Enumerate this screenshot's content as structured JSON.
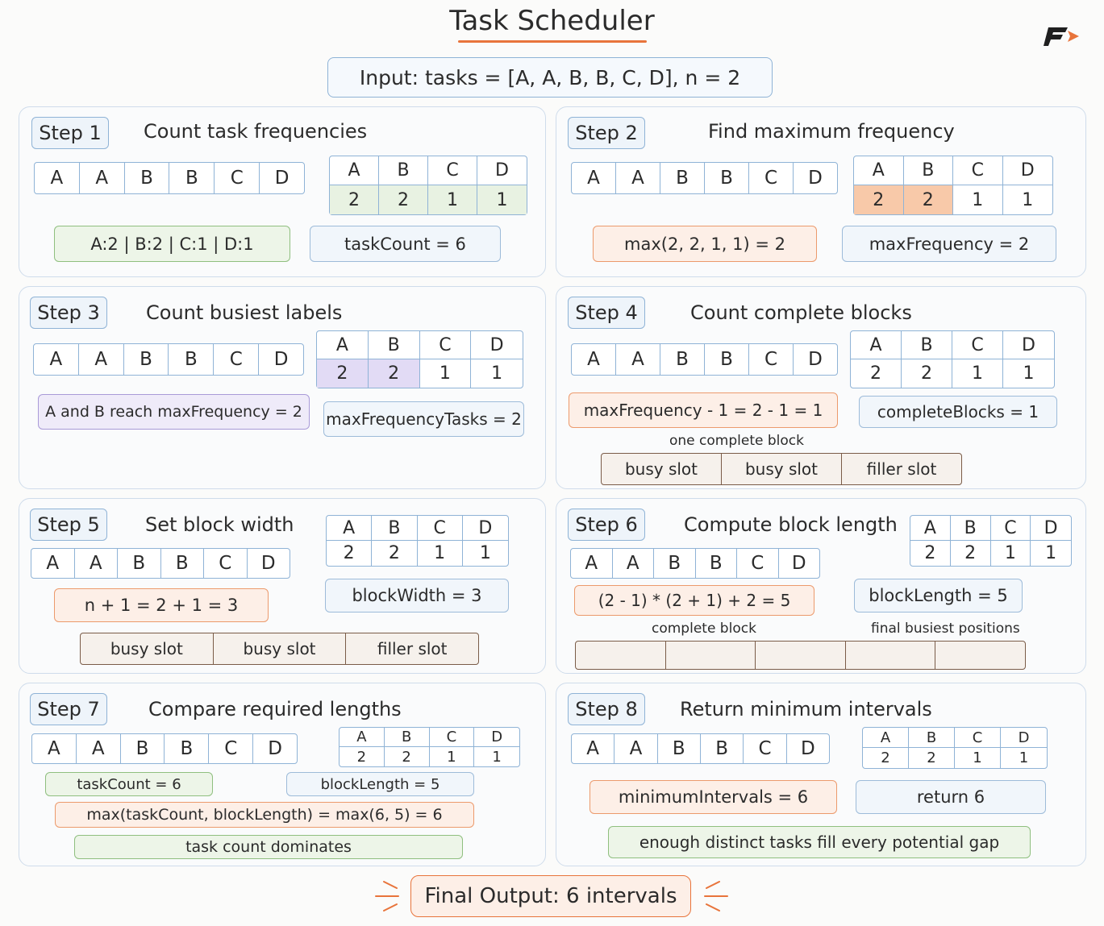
{
  "title": "Task Scheduler",
  "input": "Input:  tasks  =  [A, A, B, B, C, D],  n  =  2",
  "tasks": [
    "A",
    "A",
    "B",
    "B",
    "C",
    "D"
  ],
  "freq_headers": [
    "A",
    "B",
    "C",
    "D"
  ],
  "freq_values": [
    "2",
    "2",
    "1",
    "1"
  ],
  "steps": {
    "s1": {
      "badge": "Step 1",
      "title": "Count  task  frequencies",
      "box1": "A:2  |  B:2  |  C:1  |  D:1",
      "box2": "taskCount  =  6"
    },
    "s2": {
      "badge": "Step 2",
      "title": "Find  maximum  frequency",
      "box1": "max(2,  2,  1,  1)  =  2",
      "box2": "maxFrequency  =  2"
    },
    "s3": {
      "badge": "Step 3",
      "title": "Count  busiest  labels",
      "box1": "A  and  B  reach  maxFrequency = 2",
      "box2": "maxFrequencyTasks = 2"
    },
    "s4": {
      "badge": "Step 4",
      "title": "Count  complete  blocks",
      "box1": "maxFrequency  -  1  =  2  -  1  =  1",
      "box2": "completeBlocks  =  1",
      "caption": "one  complete  block",
      "slots": [
        "busy  slot",
        "busy  slot",
        "filler  slot"
      ]
    },
    "s5": {
      "badge": "Step 5",
      "title": "Set  block  width",
      "box1": "n  +  1  =  2  +  1  =  3",
      "box2": "blockWidth  =  3",
      "slots": [
        "busy  slot",
        "busy  slot",
        "filler  slot"
      ]
    },
    "s6": {
      "badge": "Step 6",
      "title": "Compute  block  length",
      "box1": "(2  -  1)  *  (2  +  1)  +  2  =  5",
      "box2": "blockLength  =  5",
      "caption1": "complete  block",
      "caption2": "final  busiest  positions"
    },
    "s7": {
      "badge": "Step 7",
      "title": "Compare  required  lengths",
      "box1": "taskCount  =  6",
      "box2": "blockLength  =  5",
      "box3": "max(taskCount,  blockLength)  =  max(6,  5)  =  6",
      "box4": "task  count  dominates"
    },
    "s8": {
      "badge": "Step 8",
      "title": "Return  minimum  intervals",
      "box1": "minimumIntervals  =  6",
      "box2": "return  6",
      "box3": "enough  distinct  tasks  fill  every  potential  gap"
    }
  },
  "final": "Final  Output:  6  intervals"
}
